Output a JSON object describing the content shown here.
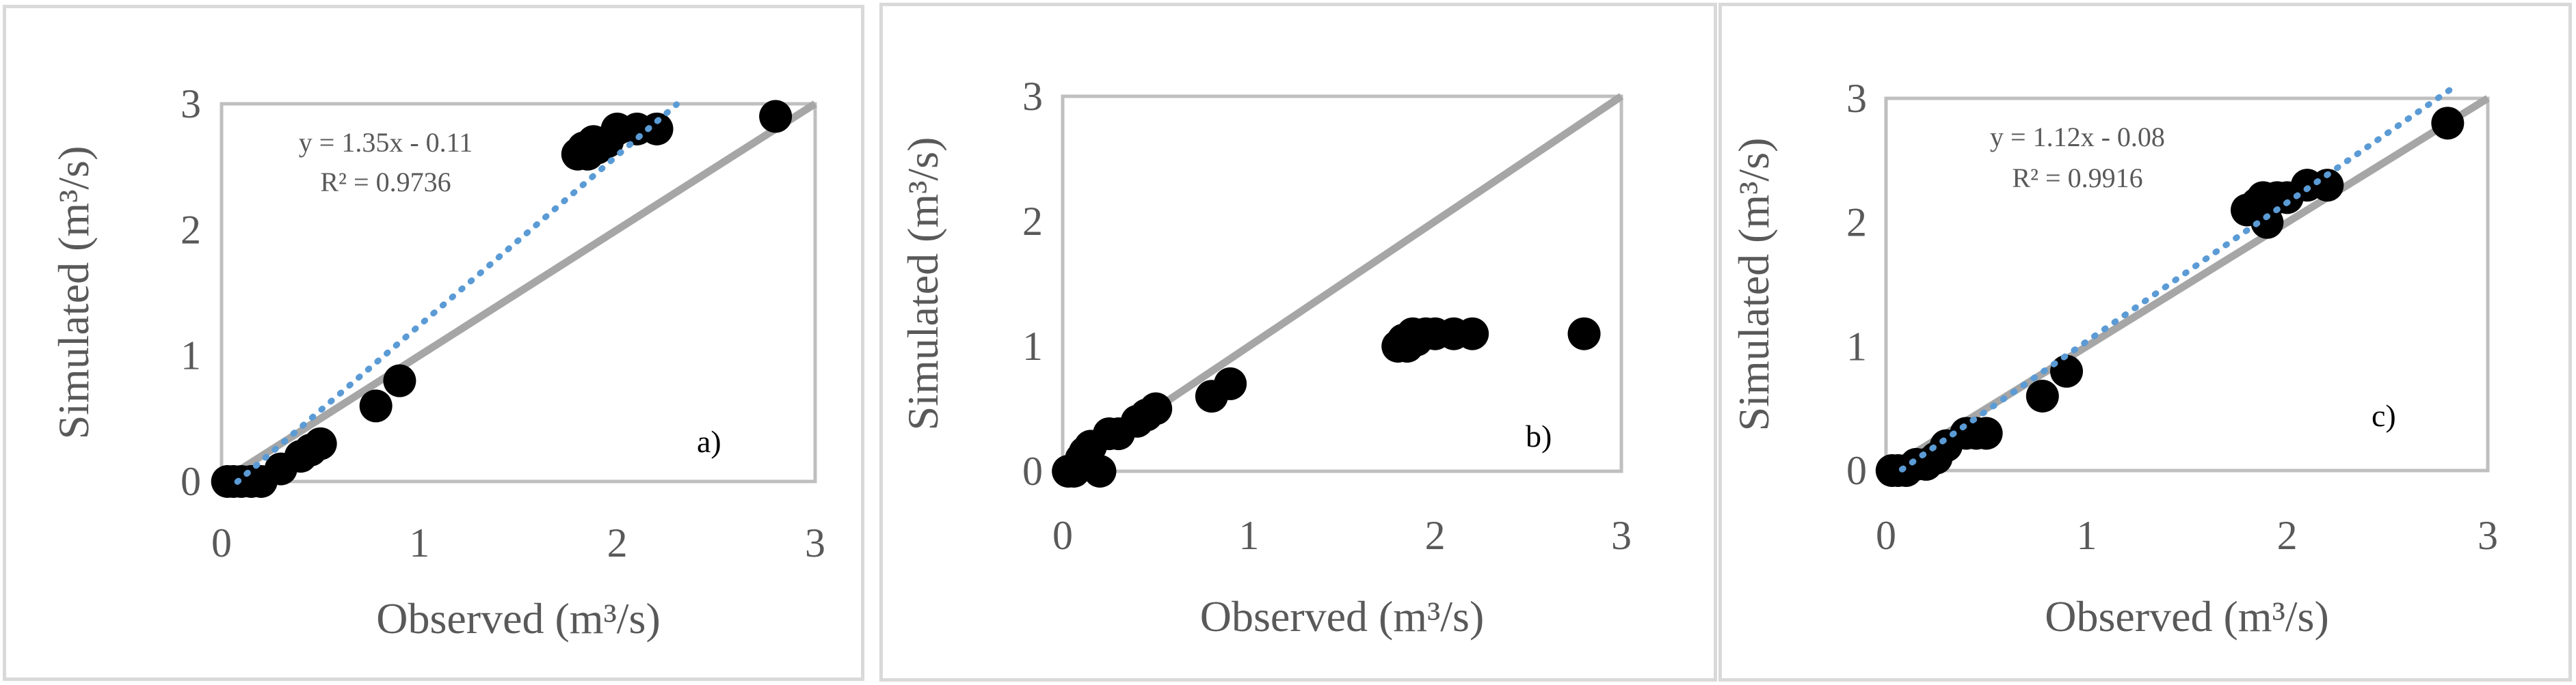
{
  "chart_data": [
    {
      "type": "scatter",
      "panel_label": "a)",
      "xlabel": "Observed (m³/s)",
      "ylabel": "Simulated (m³/s)",
      "xlim": [
        0,
        3
      ],
      "ylim": [
        0,
        3
      ],
      "xticks": [
        "0",
        "1",
        "2",
        "3"
      ],
      "yticks": [
        "0",
        "1",
        "2",
        "3"
      ],
      "grid": false,
      "one_to_one_line": true,
      "series": [
        {
          "x": [
            0.03,
            0.06,
            0.1,
            0.15,
            0.2,
            0.3,
            0.4,
            0.45,
            0.5,
            0.78,
            0.9,
            1.8,
            1.83,
            1.85,
            1.88,
            1.9,
            1.95,
            2.0,
            2.1,
            2.2,
            2.8
          ],
          "y": [
            0.0,
            0.0,
            0.0,
            0.0,
            0.0,
            0.1,
            0.2,
            0.25,
            0.3,
            0.6,
            0.8,
            2.6,
            2.65,
            2.6,
            2.7,
            2.65,
            2.7,
            2.8,
            2.8,
            2.8,
            2.9
          ]
        }
      ],
      "trendline": {
        "slope": 1.35,
        "intercept": -0.11,
        "x_range": [
          0.08,
          2.3
        ],
        "equation": "y = 1.35x - 0.11",
        "r2": "R² = 0.9736"
      }
    },
    {
      "type": "scatter",
      "panel_label": "b)",
      "xlabel": "Observed (m³/s)",
      "ylabel": "Simulated (m³/s)",
      "xlim": [
        0,
        3
      ],
      "ylim": [
        0,
        3
      ],
      "xticks": [
        "0",
        "1",
        "2",
        "3"
      ],
      "yticks": [
        "0",
        "1",
        "2",
        "3"
      ],
      "grid": false,
      "one_to_one_line": true,
      "series": [
        {
          "x": [
            0.03,
            0.06,
            0.1,
            0.12,
            0.15,
            0.2,
            0.25,
            0.3,
            0.4,
            0.45,
            0.5,
            0.8,
            0.9,
            1.8,
            1.83,
            1.85,
            1.88,
            1.9,
            1.95,
            2.0,
            2.1,
            2.2,
            2.8
          ],
          "y": [
            0.0,
            0.0,
            0.1,
            0.15,
            0.2,
            0.0,
            0.3,
            0.3,
            0.4,
            0.45,
            0.5,
            0.6,
            0.7,
            1.0,
            1.05,
            1.0,
            1.1,
            1.05,
            1.1,
            1.1,
            1.1,
            1.1,
            1.1
          ]
        }
      ]
    },
    {
      "type": "scatter",
      "panel_label": "c)",
      "xlabel": "Observed (m³/s)",
      "ylabel": "Simulated (m³/s)",
      "xlim": [
        0,
        3
      ],
      "ylim": [
        0,
        3
      ],
      "xticks": [
        "0",
        "1",
        "2",
        "3"
      ],
      "yticks": [
        "0",
        "1",
        "2",
        "3"
      ],
      "grid": false,
      "one_to_one_line": true,
      "series": [
        {
          "x": [
            0.03,
            0.06,
            0.1,
            0.15,
            0.2,
            0.25,
            0.3,
            0.4,
            0.45,
            0.5,
            0.78,
            0.9,
            1.8,
            1.85,
            1.88,
            1.9,
            1.95,
            2.0,
            2.1,
            2.2,
            2.8
          ],
          "y": [
            0.0,
            0.0,
            0.0,
            0.05,
            0.05,
            0.1,
            0.2,
            0.3,
            0.3,
            0.3,
            0.6,
            0.8,
            2.1,
            2.15,
            2.2,
            2.0,
            2.2,
            2.2,
            2.3,
            2.3,
            2.8
          ]
        }
      ],
      "trendline": {
        "slope": 1.12,
        "intercept": -0.08,
        "x_range": [
          0.08,
          2.85
        ],
        "equation": "y = 1.12x - 0.08",
        "r2": "R² = 0.9916"
      }
    }
  ]
}
